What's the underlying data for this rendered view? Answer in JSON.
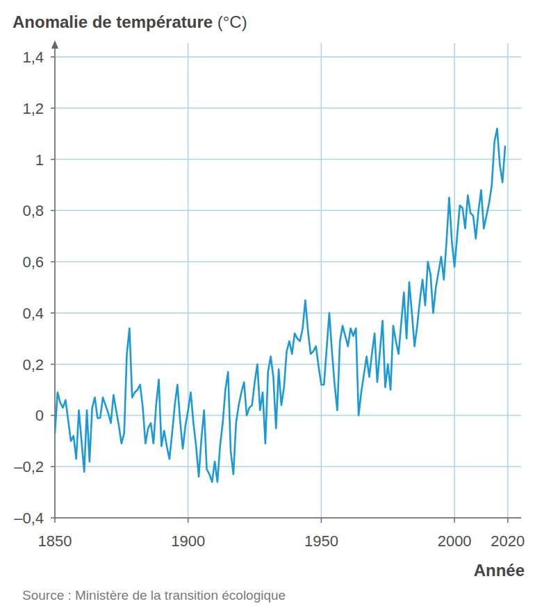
{
  "chart_data": {
    "type": "line",
    "y_label": "Anomalie de température (°C)",
    "x_label": "Année",
    "source": "Source : Ministère de la transition écologique",
    "color": "#1b9ad6",
    "grid": true,
    "xlim": [
      1850,
      2025
    ],
    "xticks": [
      1850,
      1900,
      1950,
      2000,
      2020
    ],
    "ylim": [
      -0.4,
      1.4
    ],
    "yticks": [
      {
        "value": -0.4,
        "label": "–0,4"
      },
      {
        "value": -0.2,
        "label": "–0,2"
      },
      0,
      {
        "value": 0.2,
        "label": "0,2"
      },
      {
        "value": 0.4,
        "label": "0,4"
      },
      {
        "value": 0.6,
        "label": "0,6"
      },
      {
        "value": 0.8,
        "label": "0,8"
      },
      1,
      {
        "value": 1.2,
        "label": "1,2"
      },
      {
        "value": 1.4,
        "label": "1,4"
      }
    ],
    "x": [
      1850,
      1851,
      1852,
      1853,
      1854,
      1855,
      1856,
      1857,
      1858,
      1859,
      1860,
      1861,
      1862,
      1863,
      1864,
      1865,
      1866,
      1867,
      1868,
      1869,
      1870,
      1871,
      1872,
      1873,
      1874,
      1875,
      1876,
      1877,
      1878,
      1879,
      1880,
      1881,
      1882,
      1883,
      1884,
      1885,
      1886,
      1887,
      1888,
      1889,
      1890,
      1891,
      1892,
      1893,
      1894,
      1895,
      1896,
      1897,
      1898,
      1899,
      1900,
      1901,
      1902,
      1903,
      1904,
      1905,
      1906,
      1907,
      1908,
      1909,
      1910,
      1911,
      1912,
      1913,
      1914,
      1915,
      1916,
      1917,
      1918,
      1919,
      1920,
      1921,
      1922,
      1923,
      1924,
      1925,
      1926,
      1927,
      1928,
      1929,
      1930,
      1931,
      1932,
      1933,
      1934,
      1935,
      1936,
      1937,
      1938,
      1939,
      1940,
      1941,
      1942,
      1943,
      1944,
      1945,
      1946,
      1947,
      1948,
      1949,
      1950,
      1951,
      1952,
      1953,
      1954,
      1955,
      1956,
      1957,
      1958,
      1959,
      1960,
      1961,
      1962,
      1963,
      1964,
      1965,
      1966,
      1967,
      1968,
      1969,
      1970,
      1971,
      1972,
      1973,
      1974,
      1975,
      1976,
      1977,
      1978,
      1979,
      1980,
      1981,
      1982,
      1983,
      1984,
      1985,
      1986,
      1987,
      1988,
      1989,
      1990,
      1991,
      1992,
      1993,
      1994,
      1995,
      1996,
      1997,
      1998,
      1999,
      2000,
      2001,
      2002,
      2003,
      2004,
      2005,
      2006,
      2007,
      2008,
      2009,
      2010,
      2011,
      2012,
      2013,
      2014,
      2015,
      2016,
      2017,
      2018,
      2019
    ],
    "values": [
      -0.07,
      0.09,
      0.05,
      0.03,
      0.06,
      -0.02,
      -0.1,
      -0.08,
      -0.17,
      0.02,
      -0.1,
      -0.22,
      0.02,
      -0.18,
      0.03,
      0.07,
      -0.01,
      -0.01,
      0.07,
      0.04,
      0.01,
      -0.03,
      0.08,
      0.02,
      -0.04,
      -0.11,
      -0.07,
      0.24,
      0.34,
      0.07,
      0.09,
      0.1,
      0.12,
      0.03,
      -0.11,
      -0.05,
      -0.03,
      -0.11,
      0.04,
      0.14,
      -0.12,
      -0.06,
      -0.12,
      -0.17,
      -0.07,
      0.04,
      0.12,
      -0.02,
      -0.13,
      -0.04,
      0.02,
      0.09,
      -0.03,
      -0.12,
      -0.24,
      -0.09,
      0.02,
      -0.21,
      -0.23,
      -0.26,
      -0.18,
      -0.26,
      -0.12,
      -0.03,
      0.1,
      0.17,
      -0.14,
      -0.23,
      -0.03,
      0.04,
      0.09,
      0.13,
      0.0,
      0.03,
      0.04,
      0.13,
      0.2,
      0.02,
      0.09,
      -0.11,
      0.17,
      0.23,
      0.15,
      -0.05,
      0.18,
      0.04,
      0.11,
      0.25,
      0.29,
      0.24,
      0.32,
      0.3,
      0.29,
      0.34,
      0.45,
      0.33,
      0.24,
      0.25,
      0.27,
      0.19,
      0.12,
      0.12,
      0.26,
      0.4,
      0.25,
      0.12,
      0.02,
      0.29,
      0.35,
      0.31,
      0.27,
      0.34,
      0.31,
      0.34,
      0.0,
      0.09,
      0.16,
      0.23,
      0.15,
      0.24,
      0.32,
      0.13,
      0.25,
      0.37,
      0.11,
      0.2,
      0.1,
      0.35,
      0.29,
      0.24,
      0.36,
      0.48,
      0.3,
      0.52,
      0.4,
      0.27,
      0.35,
      0.45,
      0.53,
      0.43,
      0.6,
      0.55,
      0.4,
      0.5,
      0.56,
      0.62,
      0.53,
      0.68,
      0.85,
      0.68,
      0.58,
      0.7,
      0.82,
      0.81,
      0.73,
      0.86,
      0.79,
      0.78,
      0.69,
      0.8,
      0.88,
      0.73,
      0.78,
      0.83,
      0.9,
      1.07,
      1.12,
      0.98,
      0.91,
      1.05
    ]
  }
}
